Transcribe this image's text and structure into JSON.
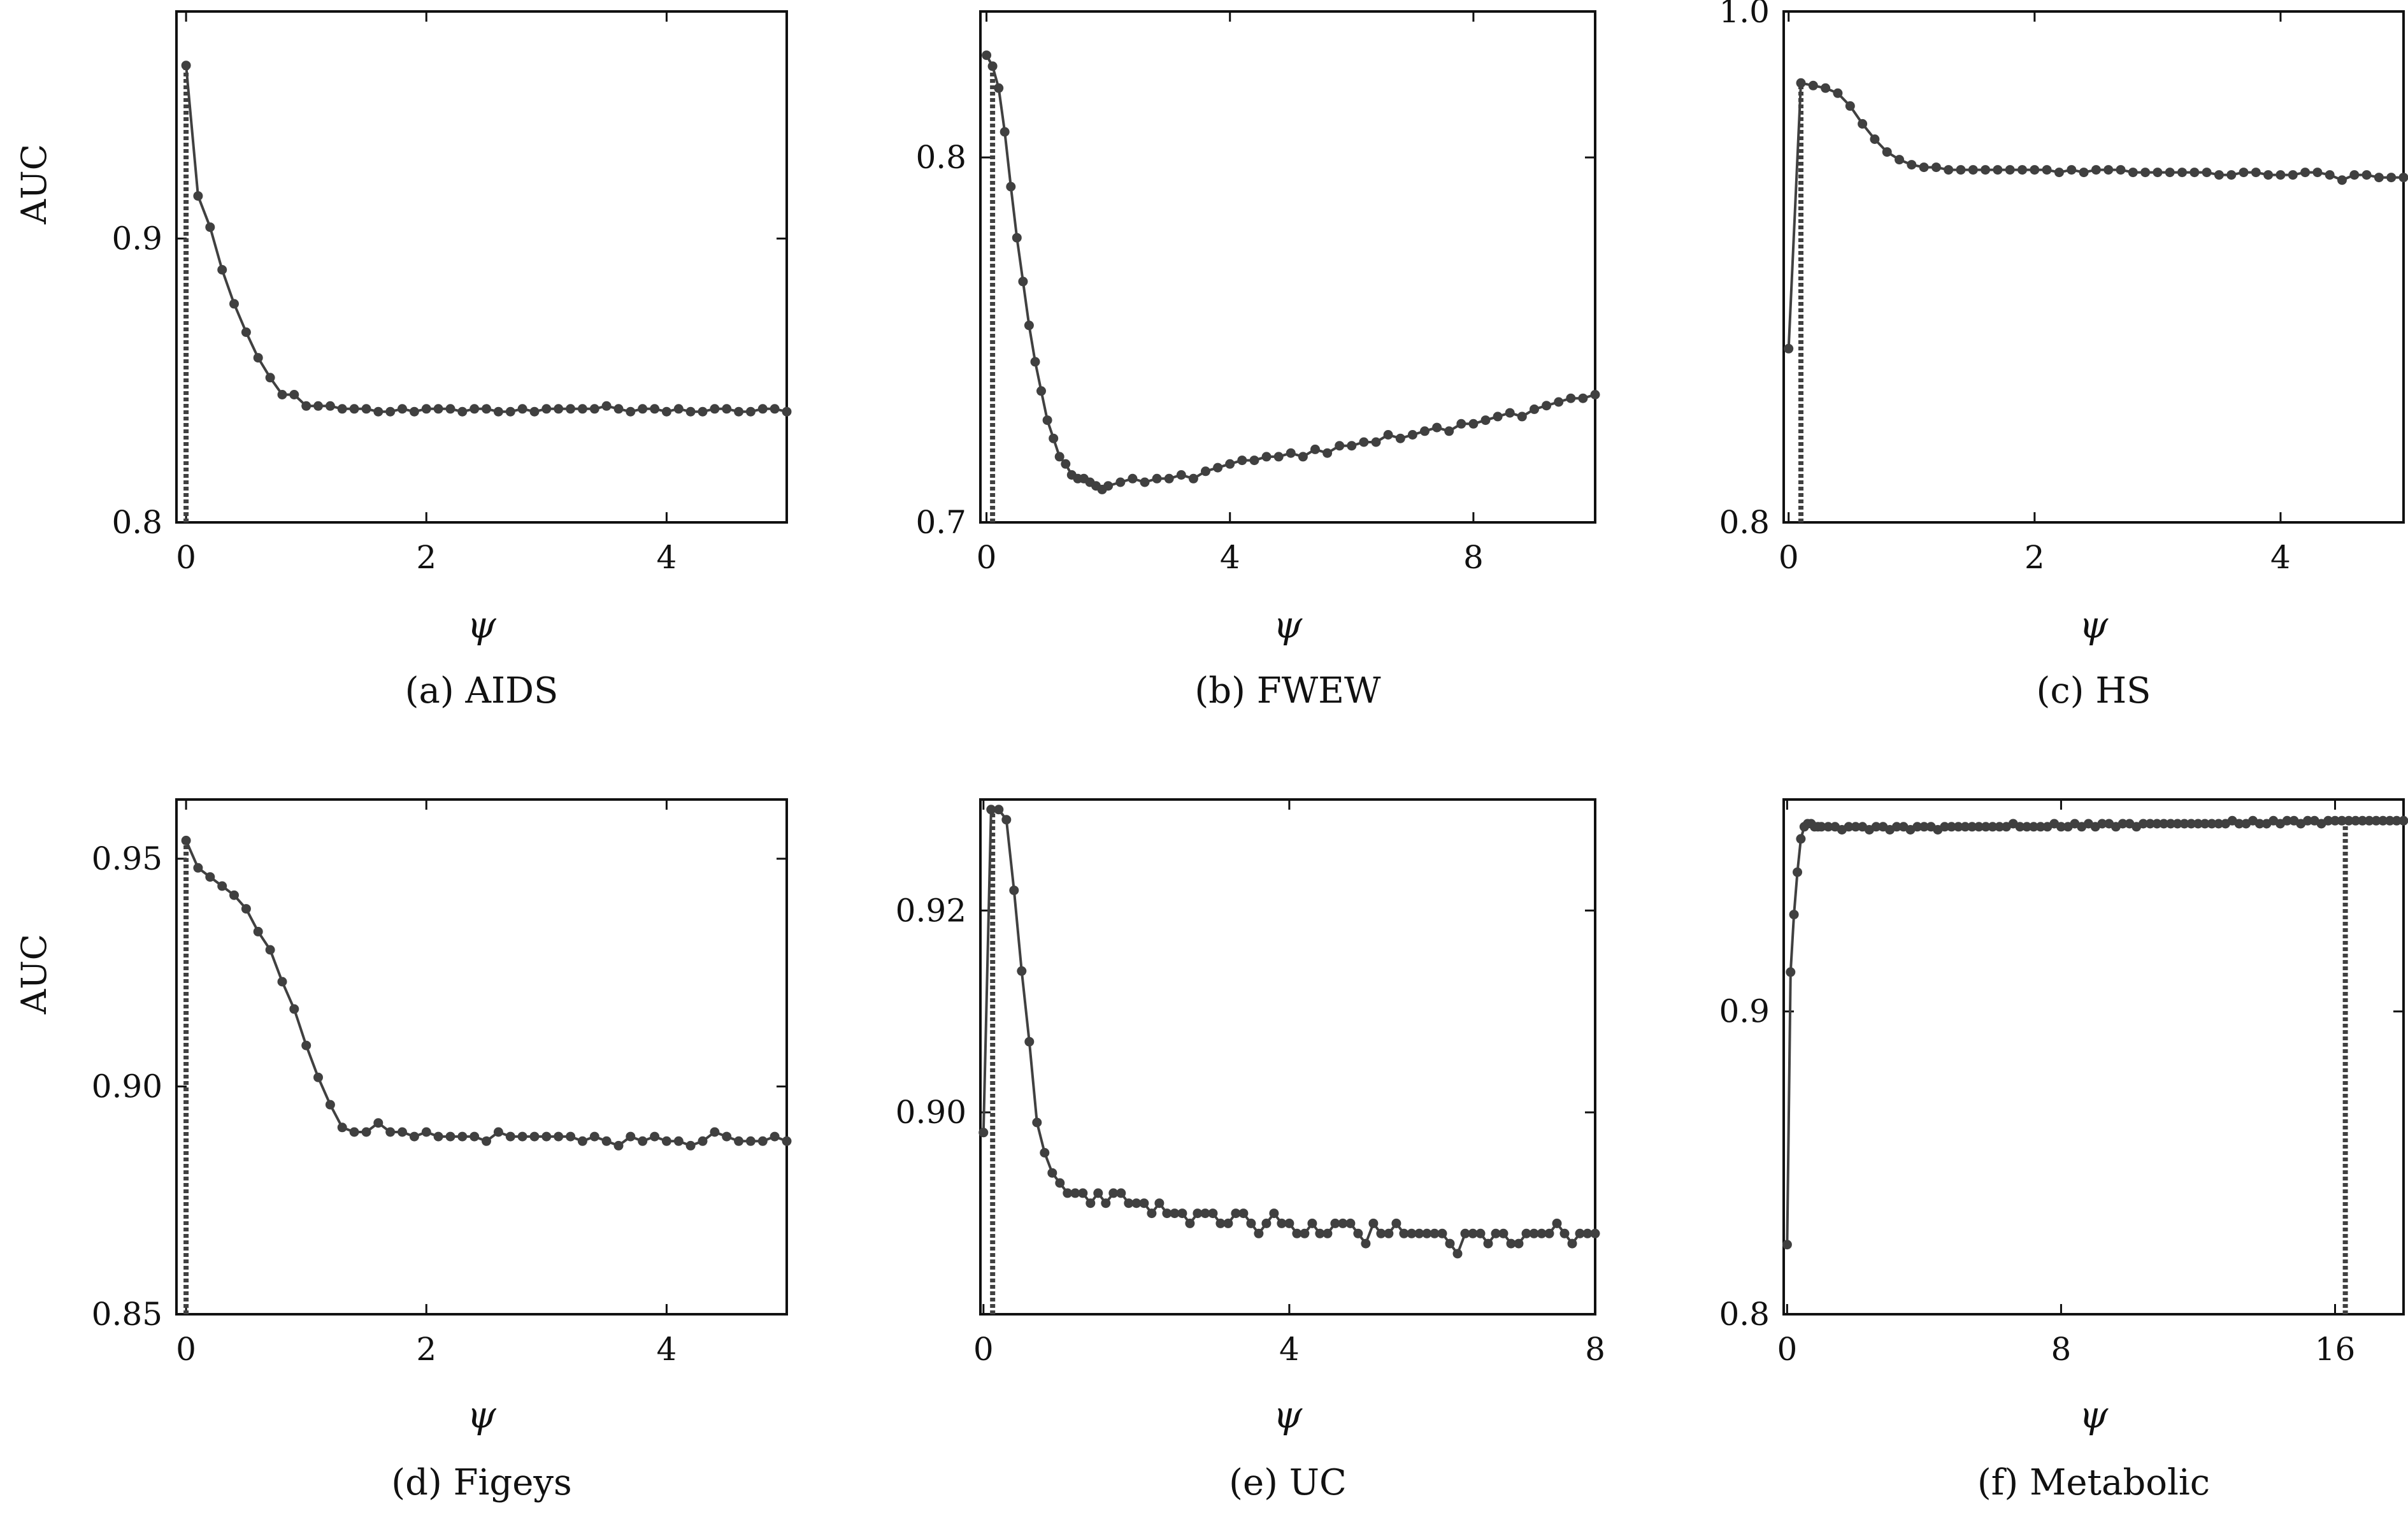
{
  "style": {
    "line_color": "#404040",
    "marker_color": "#404040",
    "axis_color": "#111111",
    "background": "#ffffff"
  },
  "chart_data": [
    {
      "type": "line",
      "caption": "(a) AIDS",
      "xlabel": "ψ",
      "ylabel": "AUC",
      "xlim": [
        -0.08,
        5.0
      ],
      "ylim": [
        0.8,
        0.98
      ],
      "xticks": [
        0,
        2,
        4
      ],
      "yticks": [
        0.8,
        0.9
      ],
      "xticklabels": [
        "0",
        "2",
        "4"
      ],
      "yticklabels": [
        "0.8",
        "0.9"
      ],
      "vline": 0.0,
      "series": [
        {
          "x": [
            0.0,
            0.1,
            0.2,
            0.3,
            0.4,
            0.5,
            0.6,
            0.7,
            0.8,
            0.9,
            1.0,
            1.1,
            1.2,
            1.3,
            1.4,
            1.5,
            1.6,
            1.7,
            1.8,
            1.9,
            2.0,
            2.1,
            2.2,
            2.3,
            2.4,
            2.5,
            2.6,
            2.7,
            2.8,
            2.9,
            3.0,
            3.1,
            3.2,
            3.3,
            3.4,
            3.5,
            3.6,
            3.7,
            3.8,
            3.9,
            4.0,
            4.1,
            4.2,
            4.3,
            4.4,
            4.5,
            4.6,
            4.7,
            4.8,
            4.9,
            5.0
          ],
          "values": [
            0.961,
            0.915,
            0.904,
            0.889,
            0.877,
            0.867,
            0.858,
            0.851,
            0.845,
            0.845,
            0.841,
            0.841,
            0.841,
            0.84,
            0.84,
            0.84,
            0.839,
            0.839,
            0.84,
            0.839,
            0.84,
            0.84,
            0.84,
            0.839,
            0.84,
            0.84,
            0.839,
            0.839,
            0.84,
            0.839,
            0.84,
            0.84,
            0.84,
            0.84,
            0.84,
            0.841,
            0.84,
            0.839,
            0.84,
            0.84,
            0.839,
            0.84,
            0.839,
            0.839,
            0.84,
            0.84,
            0.839,
            0.839,
            0.84,
            0.84,
            0.839
          ]
        }
      ]
    },
    {
      "type": "line",
      "caption": "(b) FWEW",
      "xlabel": "ψ",
      "ylabel": "",
      "xlim": [
        -0.1,
        10.0
      ],
      "ylim": [
        0.7,
        0.84
      ],
      "xticks": [
        0,
        4,
        8
      ],
      "yticks": [
        0.7,
        0.8
      ],
      "xticklabels": [
        "0",
        "4",
        "8"
      ],
      "yticklabels": [
        "0.7",
        "0.8"
      ],
      "vline": 0.1,
      "series": [
        {
          "x": [
            0.0,
            0.1,
            0.2,
            0.3,
            0.4,
            0.5,
            0.6,
            0.7,
            0.8,
            0.9,
            1.0,
            1.1,
            1.2,
            1.3,
            1.4,
            1.5,
            1.6,
            1.7,
            1.8,
            1.9,
            2.0,
            2.2,
            2.4,
            2.6,
            2.8,
            3.0,
            3.2,
            3.4,
            3.6,
            3.8,
            4.0,
            4.2,
            4.4,
            4.6,
            4.8,
            5.0,
            5.2,
            5.4,
            5.6,
            5.8,
            6.0,
            6.2,
            6.4,
            6.6,
            6.8,
            7.0,
            7.2,
            7.4,
            7.6,
            7.8,
            8.0,
            8.2,
            8.4,
            8.6,
            8.8,
            9.0,
            9.2,
            9.4,
            9.6,
            9.8,
            10.0
          ],
          "values": [
            0.828,
            0.825,
            0.819,
            0.807,
            0.792,
            0.778,
            0.766,
            0.754,
            0.744,
            0.736,
            0.728,
            0.723,
            0.718,
            0.716,
            0.713,
            0.712,
            0.712,
            0.711,
            0.71,
            0.709,
            0.71,
            0.711,
            0.712,
            0.711,
            0.712,
            0.712,
            0.713,
            0.712,
            0.714,
            0.715,
            0.716,
            0.717,
            0.717,
            0.718,
            0.718,
            0.719,
            0.718,
            0.72,
            0.719,
            0.721,
            0.721,
            0.722,
            0.722,
            0.724,
            0.723,
            0.724,
            0.725,
            0.726,
            0.725,
            0.727,
            0.727,
            0.728,
            0.729,
            0.73,
            0.729,
            0.731,
            0.732,
            0.733,
            0.734,
            0.734,
            0.735
          ]
        }
      ]
    },
    {
      "type": "line",
      "caption": "(c) HS",
      "xlabel": "ψ",
      "ylabel": "",
      "xlim": [
        -0.04,
        5.0
      ],
      "ylim": [
        0.8,
        1.0
      ],
      "xticks": [
        0,
        2,
        4
      ],
      "yticks": [
        0.8,
        1.0
      ],
      "xticklabels": [
        "0",
        "2",
        "4"
      ],
      "yticklabels": [
        "0.8",
        "1.0"
      ],
      "vline": 0.1,
      "series": [
        {
          "x": [
            0.0,
            0.1,
            0.2,
            0.3,
            0.4,
            0.5,
            0.6,
            0.7,
            0.8,
            0.9,
            1.0,
            1.1,
            1.2,
            1.3,
            1.4,
            1.5,
            1.6,
            1.7,
            1.8,
            1.9,
            2.0,
            2.1,
            2.2,
            2.3,
            2.4,
            2.5,
            2.6,
            2.7,
            2.8,
            2.9,
            3.0,
            3.1,
            3.2,
            3.3,
            3.4,
            3.5,
            3.6,
            3.7,
            3.8,
            3.9,
            4.0,
            4.1,
            4.2,
            4.3,
            4.4,
            4.5,
            4.6,
            4.7,
            4.8,
            4.9,
            5.0
          ],
          "values": [
            0.868,
            0.972,
            0.971,
            0.97,
            0.968,
            0.963,
            0.956,
            0.95,
            0.945,
            0.942,
            0.94,
            0.939,
            0.939,
            0.938,
            0.938,
            0.938,
            0.938,
            0.938,
            0.938,
            0.938,
            0.938,
            0.938,
            0.937,
            0.938,
            0.937,
            0.938,
            0.938,
            0.938,
            0.937,
            0.937,
            0.937,
            0.937,
            0.937,
            0.937,
            0.937,
            0.936,
            0.936,
            0.937,
            0.937,
            0.936,
            0.936,
            0.936,
            0.937,
            0.937,
            0.936,
            0.934,
            0.936,
            0.936,
            0.935,
            0.935,
            0.935
          ]
        }
      ]
    },
    {
      "type": "line",
      "caption": "(d) Figeys",
      "xlabel": "ψ",
      "ylabel": "AUC",
      "xlim": [
        -0.08,
        5.0
      ],
      "ylim": [
        0.85,
        0.963
      ],
      "xticks": [
        0,
        2,
        4
      ],
      "yticks": [
        0.85,
        0.9,
        0.95
      ],
      "xticklabels": [
        "0",
        "2",
        "4"
      ],
      "yticklabels": [
        "0.85",
        "0.90",
        "0.95"
      ],
      "vline": 0.0,
      "series": [
        {
          "x": [
            0.0,
            0.1,
            0.2,
            0.3,
            0.4,
            0.5,
            0.6,
            0.7,
            0.8,
            0.9,
            1.0,
            1.1,
            1.2,
            1.3,
            1.4,
            1.5,
            1.6,
            1.7,
            1.8,
            1.9,
            2.0,
            2.1,
            2.2,
            2.3,
            2.4,
            2.5,
            2.6,
            2.7,
            2.8,
            2.9,
            3.0,
            3.1,
            3.2,
            3.3,
            3.4,
            3.5,
            3.6,
            3.7,
            3.8,
            3.9,
            4.0,
            4.1,
            4.2,
            4.3,
            4.4,
            4.5,
            4.6,
            4.7,
            4.8,
            4.9,
            5.0
          ],
          "values": [
            0.954,
            0.948,
            0.946,
            0.944,
            0.942,
            0.939,
            0.934,
            0.93,
            0.923,
            0.917,
            0.909,
            0.902,
            0.896,
            0.891,
            0.89,
            0.89,
            0.892,
            0.89,
            0.89,
            0.889,
            0.89,
            0.889,
            0.889,
            0.889,
            0.889,
            0.888,
            0.89,
            0.889,
            0.889,
            0.889,
            0.889,
            0.889,
            0.889,
            0.888,
            0.889,
            0.888,
            0.887,
            0.889,
            0.888,
            0.889,
            0.888,
            0.888,
            0.887,
            0.888,
            0.89,
            0.889,
            0.888,
            0.888,
            0.888,
            0.889,
            0.888
          ]
        }
      ]
    },
    {
      "type": "line",
      "caption": "(e) UC",
      "xlabel": "ψ",
      "ylabel": "",
      "xlim": [
        -0.04,
        8.0
      ],
      "ylim": [
        0.88,
        0.931
      ],
      "xticks": [
        0,
        4,
        8
      ],
      "yticks": [
        0.9,
        0.92
      ],
      "xticklabels": [
        "0",
        "4",
        "8"
      ],
      "yticklabels": [
        "0.90",
        "0.92"
      ],
      "vline": 0.12,
      "series": [
        {
          "x": [
            0.0,
            0.1,
            0.2,
            0.3,
            0.4,
            0.5,
            0.6,
            0.7,
            0.8,
            0.9,
            1.0,
            1.1,
            1.2,
            1.3,
            1.4,
            1.5,
            1.6,
            1.7,
            1.8,
            1.9,
            2.0,
            2.1,
            2.2,
            2.3,
            2.4,
            2.5,
            2.6,
            2.7,
            2.8,
            2.9,
            3.0,
            3.1,
            3.2,
            3.3,
            3.4,
            3.5,
            3.6,
            3.7,
            3.8,
            3.9,
            4.0,
            4.1,
            4.2,
            4.3,
            4.4,
            4.5,
            4.6,
            4.7,
            4.8,
            4.9,
            5.0,
            5.1,
            5.2,
            5.3,
            5.4,
            5.5,
            5.6,
            5.7,
            5.8,
            5.9,
            6.0,
            6.1,
            6.2,
            6.3,
            6.4,
            6.5,
            6.6,
            6.7,
            6.8,
            6.9,
            7.0,
            7.1,
            7.2,
            7.3,
            7.4,
            7.5,
            7.6,
            7.7,
            7.8,
            7.9,
            8.0
          ],
          "values": [
            0.898,
            0.93,
            0.93,
            0.929,
            0.922,
            0.914,
            0.907,
            0.899,
            0.896,
            0.894,
            0.893,
            0.892,
            0.892,
            0.892,
            0.891,
            0.892,
            0.891,
            0.892,
            0.892,
            0.891,
            0.891,
            0.891,
            0.89,
            0.891,
            0.89,
            0.89,
            0.89,
            0.889,
            0.89,
            0.89,
            0.89,
            0.889,
            0.889,
            0.89,
            0.89,
            0.889,
            0.888,
            0.889,
            0.89,
            0.889,
            0.889,
            0.888,
            0.888,
            0.889,
            0.888,
            0.888,
            0.889,
            0.889,
            0.889,
            0.888,
            0.887,
            0.889,
            0.888,
            0.888,
            0.889,
            0.888,
            0.888,
            0.888,
            0.888,
            0.888,
            0.888,
            0.887,
            0.886,
            0.888,
            0.888,
            0.888,
            0.887,
            0.888,
            0.888,
            0.887,
            0.887,
            0.888,
            0.888,
            0.888,
            0.888,
            0.889,
            0.888,
            0.887,
            0.888,
            0.888,
            0.888
          ]
        }
      ]
    },
    {
      "type": "line",
      "caption": "(f) Metabolic",
      "xlabel": "ψ",
      "ylabel": "",
      "xlim": [
        -0.1,
        18.0
      ],
      "ylim": [
        0.8,
        0.97
      ],
      "xticks": [
        0,
        8,
        16
      ],
      "yticks": [
        0.8,
        0.9
      ],
      "xticklabels": [
        "0",
        "8",
        "16"
      ],
      "yticklabels": [
        "0.8",
        "0.9"
      ],
      "vline": 16.3,
      "series": [
        {
          "x": [
            0.0,
            0.1,
            0.2,
            0.3,
            0.4,
            0.5,
            0.6,
            0.7,
            0.8,
            0.9,
            1.0,
            1.2,
            1.4,
            1.6,
            1.8,
            2.0,
            2.2,
            2.4,
            2.6,
            2.8,
            3.0,
            3.2,
            3.4,
            3.6,
            3.8,
            4.0,
            4.2,
            4.4,
            4.6,
            4.8,
            5.0,
            5.2,
            5.4,
            5.6,
            5.8,
            6.0,
            6.2,
            6.4,
            6.6,
            6.8,
            7.0,
            7.2,
            7.4,
            7.6,
            7.8,
            8.0,
            8.2,
            8.4,
            8.6,
            8.8,
            9.0,
            9.2,
            9.4,
            9.6,
            9.8,
            10.0,
            10.2,
            10.4,
            10.6,
            10.8,
            11.0,
            11.2,
            11.4,
            11.6,
            11.8,
            12.0,
            12.2,
            12.4,
            12.6,
            12.8,
            13.0,
            13.2,
            13.4,
            13.6,
            13.8,
            14.0,
            14.2,
            14.4,
            14.6,
            14.8,
            15.0,
            15.2,
            15.4,
            15.6,
            15.8,
            16.0,
            16.2,
            16.4,
            16.6,
            16.8,
            17.0,
            17.2,
            17.4,
            17.6,
            17.8,
            18.0
          ],
          "values": [
            0.823,
            0.913,
            0.932,
            0.946,
            0.957,
            0.961,
            0.962,
            0.962,
            0.961,
            0.961,
            0.961,
            0.961,
            0.961,
            0.96,
            0.961,
            0.961,
            0.961,
            0.96,
            0.961,
            0.961,
            0.96,
            0.961,
            0.961,
            0.96,
            0.961,
            0.961,
            0.961,
            0.96,
            0.961,
            0.961,
            0.961,
            0.961,
            0.961,
            0.961,
            0.961,
            0.961,
            0.961,
            0.961,
            0.962,
            0.961,
            0.961,
            0.961,
            0.961,
            0.961,
            0.962,
            0.961,
            0.961,
            0.962,
            0.961,
            0.962,
            0.961,
            0.962,
            0.962,
            0.961,
            0.962,
            0.962,
            0.961,
            0.962,
            0.962,
            0.962,
            0.962,
            0.962,
            0.962,
            0.962,
            0.962,
            0.962,
            0.962,
            0.962,
            0.962,
            0.962,
            0.963,
            0.962,
            0.962,
            0.963,
            0.962,
            0.962,
            0.963,
            0.962,
            0.963,
            0.963,
            0.962,
            0.963,
            0.963,
            0.962,
            0.963,
            0.963,
            0.963,
            0.963,
            0.963,
            0.963,
            0.963,
            0.963,
            0.963,
            0.963,
            0.963,
            0.963
          ]
        }
      ]
    }
  ]
}
